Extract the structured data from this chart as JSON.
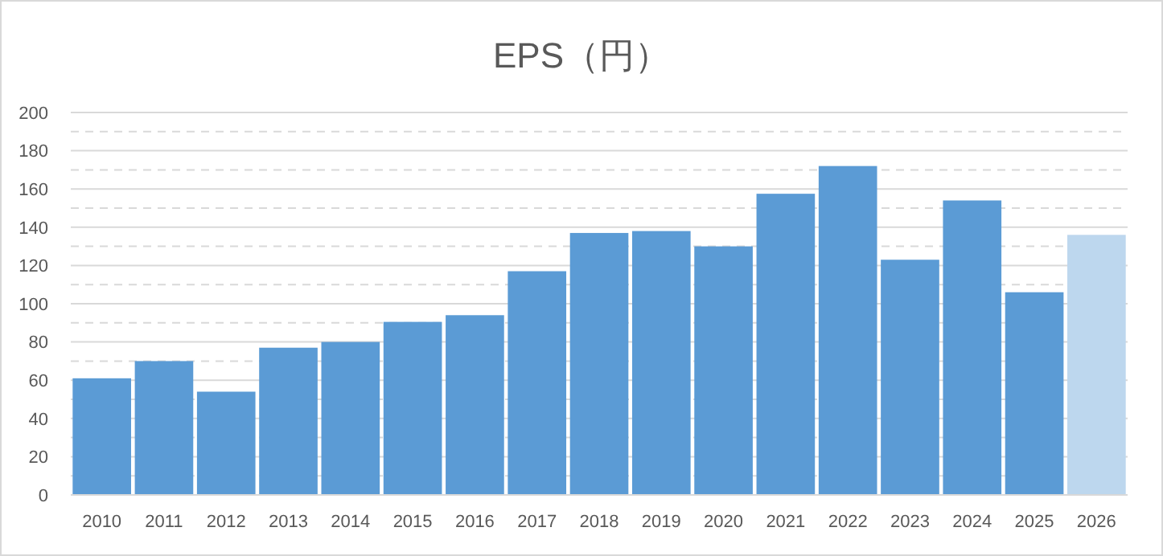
{
  "chart_data": {
    "type": "bar",
    "title": "EPS（円）",
    "categories": [
      "2010",
      "2011",
      "2012",
      "2013",
      "2014",
      "2015",
      "2016",
      "2017",
      "2018",
      "2019",
      "2020",
      "2021",
      "2022",
      "2023",
      "2024",
      "2025",
      "2026"
    ],
    "values": [
      61,
      70,
      54,
      77,
      80,
      90.5,
      94,
      117,
      137,
      138,
      130,
      157.5,
      172,
      123,
      154,
      106,
      136
    ],
    "colors": [
      "#5b9bd5",
      "#5b9bd5",
      "#5b9bd5",
      "#5b9bd5",
      "#5b9bd5",
      "#5b9bd5",
      "#5b9bd5",
      "#5b9bd5",
      "#5b9bd5",
      "#5b9bd5",
      "#5b9bd5",
      "#5b9bd5",
      "#5b9bd5",
      "#5b9bd5",
      "#5b9bd5",
      "#5b9bd5",
      "#bdd7ee"
    ],
    "ylim": [
      0,
      200
    ],
    "yticks": [
      0,
      {
        "value": 10,
        "label": null
      },
      20,
      {
        "value": 30,
        "label": null
      },
      40,
      {
        "value": 50,
        "label": null
      },
      60,
      {
        "value": 70,
        "label": null
      },
      80,
      {
        "value": 90,
        "label": null
      },
      100,
      {
        "value": 110,
        "label": null
      },
      120,
      {
        "value": 130,
        "label": null
      },
      140,
      {
        "value": 150,
        "label": null
      },
      160,
      {
        "value": 170,
        "label": null
      },
      180,
      {
        "value": 190,
        "label": null
      },
      200
    ],
    "grid": "y"
  }
}
